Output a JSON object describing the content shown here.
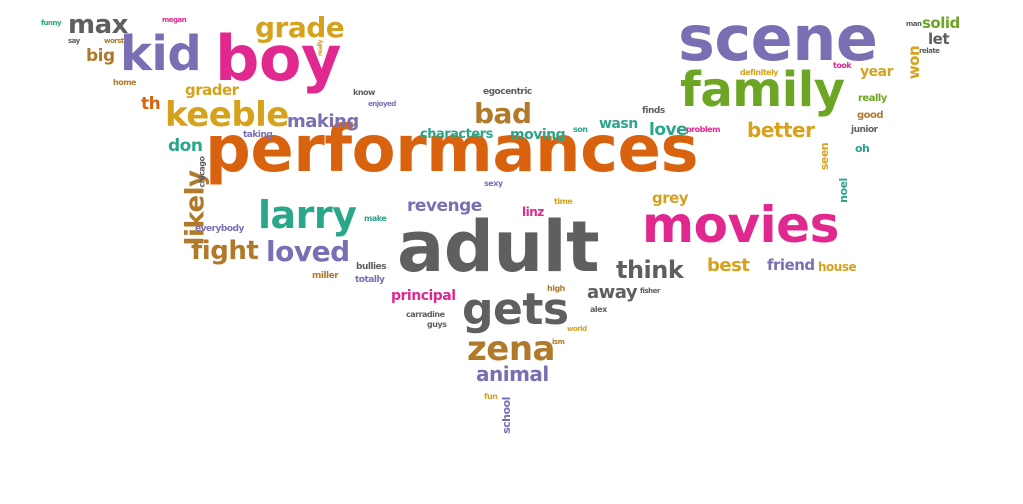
{
  "palette": {
    "orange": "#d9620f",
    "purple": "#7a6fb3",
    "pink": "#e0288f",
    "green": "#6da524",
    "teal": "#2aa688",
    "gold": "#d6a21e",
    "brown": "#b07a2a",
    "gray": "#5f5f5f"
  },
  "words": [
    {
      "text": "performances",
      "color": "orange"
    },
    {
      "text": "adult",
      "color": "gray"
    },
    {
      "text": "scene",
      "color": "purple"
    },
    {
      "text": "movies",
      "color": "pink"
    },
    {
      "text": "boy",
      "color": "pink"
    },
    {
      "text": "family",
      "color": "green"
    },
    {
      "text": "kid",
      "color": "purple"
    },
    {
      "text": "gets",
      "color": "gray"
    },
    {
      "text": "larry",
      "color": "teal"
    },
    {
      "text": "keeble",
      "color": "gold"
    },
    {
      "text": "zena",
      "color": "brown"
    },
    {
      "text": "grade",
      "color": "gold"
    },
    {
      "text": "likely",
      "color": "brown"
    },
    {
      "text": "max",
      "color": "gray"
    },
    {
      "text": "loved",
      "color": "purple"
    },
    {
      "text": "fight",
      "color": "brown"
    },
    {
      "text": "think",
      "color": "gray"
    },
    {
      "text": "bad",
      "color": "brown"
    },
    {
      "text": "animal",
      "color": "purple"
    },
    {
      "text": "making",
      "color": "purple"
    },
    {
      "text": "better",
      "color": "gold"
    },
    {
      "text": "revenge",
      "color": "purple"
    },
    {
      "text": "away",
      "color": "gray"
    },
    {
      "text": "best",
      "color": "gold"
    },
    {
      "text": "love",
      "color": "teal"
    },
    {
      "text": "friend",
      "color": "purple"
    },
    {
      "text": "grey",
      "color": "gold"
    },
    {
      "text": "principal",
      "color": "pink"
    },
    {
      "text": "year",
      "color": "gold"
    },
    {
      "text": "solid",
      "color": "green"
    },
    {
      "text": "let",
      "color": "gray"
    },
    {
      "text": "won",
      "color": "gold"
    },
    {
      "text": "don",
      "color": "teal"
    },
    {
      "text": "grader",
      "color": "gold"
    },
    {
      "text": "th",
      "color": "orange"
    },
    {
      "text": "big",
      "color": "brown"
    },
    {
      "text": "wasn",
      "color": "teal"
    },
    {
      "text": "moving",
      "color": "teal"
    },
    {
      "text": "characters",
      "color": "teal"
    },
    {
      "text": "house",
      "color": "gold"
    },
    {
      "text": "school",
      "color": "purple"
    },
    {
      "text": "noel",
      "color": "teal"
    },
    {
      "text": "seen",
      "color": "gold"
    },
    {
      "text": "really",
      "color": "green"
    },
    {
      "text": "good",
      "color": "brown"
    },
    {
      "text": "oh",
      "color": "teal"
    },
    {
      "text": "junior",
      "color": "gray"
    },
    {
      "text": "linz",
      "color": "pink"
    },
    {
      "text": "egocentric",
      "color": "gray"
    },
    {
      "text": "bullies",
      "color": "gray"
    },
    {
      "text": "totally",
      "color": "purple"
    },
    {
      "text": "miller",
      "color": "brown"
    },
    {
      "text": "everybody",
      "color": "purple"
    },
    {
      "text": "chicago",
      "color": "gray"
    },
    {
      "text": "taking",
      "color": "purple"
    },
    {
      "text": "make",
      "color": "teal"
    },
    {
      "text": "sexy",
      "color": "purple"
    },
    {
      "text": "time",
      "color": "gold"
    },
    {
      "text": "son",
      "color": "teal"
    },
    {
      "text": "finds",
      "color": "gray"
    },
    {
      "text": "problem",
      "color": "pink"
    },
    {
      "text": "definitely",
      "color": "gold"
    },
    {
      "text": "took",
      "color": "pink"
    },
    {
      "text": "man",
      "color": "gray"
    },
    {
      "text": "relate",
      "color": "gray"
    },
    {
      "text": "high",
      "color": "brown"
    },
    {
      "text": "alex",
      "color": "gray"
    },
    {
      "text": "fisher",
      "color": "gray"
    },
    {
      "text": "carradine",
      "color": "gray"
    },
    {
      "text": "guys",
      "color": "gray"
    },
    {
      "text": "world",
      "color": "gold"
    },
    {
      "text": "ism",
      "color": "brown"
    },
    {
      "text": "fun",
      "color": "gold"
    },
    {
      "text": "know",
      "color": "gray"
    },
    {
      "text": "enjoyed",
      "color": "purple"
    },
    {
      "text": "really",
      "color": "gold"
    },
    {
      "text": "home",
      "color": "brown"
    },
    {
      "text": "funny",
      "color": "teal"
    },
    {
      "text": "say",
      "color": "gray"
    },
    {
      "text": "worst",
      "color": "brown"
    },
    {
      "text": "megan",
      "color": "pink"
    }
  ]
}
